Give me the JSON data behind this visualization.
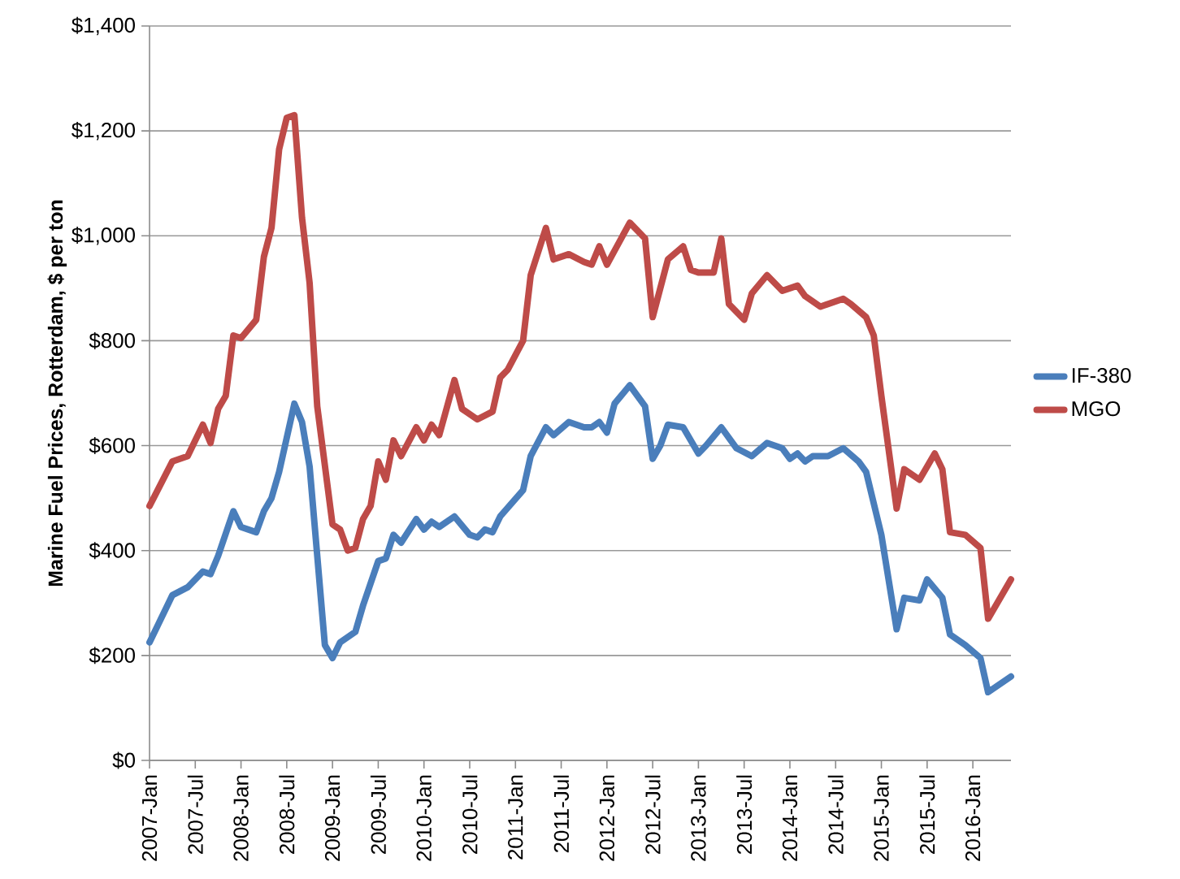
{
  "chart_data": {
    "type": "line",
    "ylabel": "Marine Fuel Prices, Rotterdam, $ per ton",
    "xlim": [
      "2007-01",
      "2016-06"
    ],
    "xticks": [
      {
        "value": "2007-01",
        "label": "2007-Jan"
      },
      {
        "value": "2007-07",
        "label": "2007-Jul"
      },
      {
        "value": "2008-01",
        "label": "2008-Jan"
      },
      {
        "value": "2008-07",
        "label": "2008-Jul"
      },
      {
        "value": "2009-01",
        "label": "2009-Jan"
      },
      {
        "value": "2009-07",
        "label": "2009-Jul"
      },
      {
        "value": "2010-01",
        "label": "2010-Jan"
      },
      {
        "value": "2010-07",
        "label": "2010-Jul"
      },
      {
        "value": "2011-01",
        "label": "2011-Jan"
      },
      {
        "value": "2011-07",
        "label": "2011-Jul"
      },
      {
        "value": "2012-01",
        "label": "2012-Jan"
      },
      {
        "value": "2012-07",
        "label": "2012-Jul"
      },
      {
        "value": "2013-01",
        "label": "2013-Jan"
      },
      {
        "value": "2013-07",
        "label": "2013-Jul"
      },
      {
        "value": "2014-01",
        "label": "2014-Jan"
      },
      {
        "value": "2014-07",
        "label": "2014-Jul"
      },
      {
        "value": "2015-01",
        "label": "2015-Jan"
      },
      {
        "value": "2015-07",
        "label": "2015-Jul"
      },
      {
        "value": "2016-01",
        "label": "2016-Jan"
      }
    ],
    "ylim": [
      0,
      1400
    ],
    "yticks": [
      {
        "value": 0,
        "label": "$0"
      },
      {
        "value": 200,
        "label": "$200"
      },
      {
        "value": 400,
        "label": "$400"
      },
      {
        "value": 600,
        "label": "$600"
      },
      {
        "value": 800,
        "label": "$800"
      },
      {
        "value": 1000,
        "label": "$1,000"
      },
      {
        "value": 1200,
        "label": "$1,200"
      },
      {
        "value": 1400,
        "label": "$1,400"
      }
    ],
    "grid": "y",
    "legend": "right",
    "series": [
      {
        "name": "IF-380",
        "color": "#4a7ebb",
        "x": [
          "2007-01",
          "2007-04",
          "2007-06",
          "2007-08",
          "2007-09",
          "2007-10",
          "2007-12",
          "2008-01",
          "2008-03",
          "2008-04",
          "2008-05",
          "2008-06",
          "2008-08",
          "2008-09",
          "2008-10",
          "2008-12",
          "2009-01",
          "2009-02",
          "2009-04",
          "2009-05",
          "2009-07",
          "2009-08",
          "2009-09",
          "2009-10",
          "2009-12",
          "2010-01",
          "2010-02",
          "2010-03",
          "2010-05",
          "2010-07",
          "2010-08",
          "2010-09",
          "2010-10",
          "2010-11",
          "2011-02",
          "2011-03",
          "2011-05",
          "2011-06",
          "2011-08",
          "2011-10",
          "2011-11",
          "2011-12",
          "2012-01",
          "2012-02",
          "2012-04",
          "2012-06",
          "2012-07",
          "2012-08",
          "2012-09",
          "2012-11",
          "2013-01",
          "2013-02",
          "2013-04",
          "2013-06",
          "2013-08",
          "2013-10",
          "2013-12",
          "2014-01",
          "2014-02",
          "2014-03",
          "2014-04",
          "2014-06",
          "2014-08",
          "2014-10",
          "2014-11",
          "2015-01",
          "2015-02",
          "2015-03",
          "2015-04",
          "2015-06",
          "2015-07",
          "2015-09",
          "2015-10",
          "2015-12",
          "2016-02",
          "2016-03",
          "2016-06"
        ],
        "values": [
          225,
          315,
          330,
          360,
          355,
          390,
          475,
          445,
          435,
          475,
          500,
          550,
          680,
          645,
          560,
          220,
          195,
          225,
          245,
          295,
          380,
          385,
          430,
          415,
          460,
          440,
          455,
          445,
          465,
          430,
          425,
          440,
          435,
          465,
          515,
          580,
          635,
          620,
          645,
          635,
          635,
          645,
          625,
          680,
          715,
          675,
          575,
          600,
          640,
          635,
          585,
          600,
          635,
          595,
          580,
          605,
          595,
          575,
          585,
          570,
          580,
          580,
          595,
          570,
          550,
          430,
          340,
          250,
          310,
          305,
          345,
          310,
          240,
          220,
          195,
          130,
          160
        ]
      },
      {
        "name": "MGO",
        "color": "#be4b48",
        "x": [
          "2007-01",
          "2007-04",
          "2007-06",
          "2007-08",
          "2007-09",
          "2007-10",
          "2007-11",
          "2007-12",
          "2008-01",
          "2008-03",
          "2008-04",
          "2008-05",
          "2008-06",
          "2008-07",
          "2008-08",
          "2008-09",
          "2008-10",
          "2008-11",
          "2009-01",
          "2009-02",
          "2009-03",
          "2009-04",
          "2009-05",
          "2009-06",
          "2009-07",
          "2009-08",
          "2009-09",
          "2009-10",
          "2009-12",
          "2010-01",
          "2010-02",
          "2010-03",
          "2010-05",
          "2010-06",
          "2010-08",
          "2010-10",
          "2010-11",
          "2010-12",
          "2011-02",
          "2011-03",
          "2011-05",
          "2011-06",
          "2011-08",
          "2011-10",
          "2011-11",
          "2011-12",
          "2012-01",
          "2012-04",
          "2012-06",
          "2012-07",
          "2012-09",
          "2012-11",
          "2012-12",
          "2013-01",
          "2013-03",
          "2013-04",
          "2013-05",
          "2013-07",
          "2013-08",
          "2013-10",
          "2013-12",
          "2014-02",
          "2014-03",
          "2014-05",
          "2014-08",
          "2014-09",
          "2014-11",
          "2014-12",
          "2015-01",
          "2015-03",
          "2015-04",
          "2015-06",
          "2015-08",
          "2015-09",
          "2015-10",
          "2015-12",
          "2016-02",
          "2016-03",
          "2016-06"
        ],
        "values": [
          485,
          570,
          580,
          640,
          605,
          670,
          695,
          810,
          805,
          840,
          960,
          1015,
          1165,
          1225,
          1230,
          1035,
          910,
          675,
          450,
          440,
          400,
          405,
          460,
          485,
          570,
          535,
          610,
          580,
          635,
          610,
          640,
          620,
          725,
          670,
          650,
          665,
          730,
          745,
          800,
          925,
          1015,
          955,
          965,
          950,
          945,
          980,
          945,
          1025,
          995,
          845,
          955,
          980,
          935,
          930,
          930,
          995,
          870,
          840,
          890,
          925,
          895,
          905,
          885,
          865,
          880,
          870,
          845,
          810,
          695,
          480,
          555,
          535,
          585,
          555,
          435,
          430,
          405,
          270,
          345
        ]
      }
    ]
  }
}
